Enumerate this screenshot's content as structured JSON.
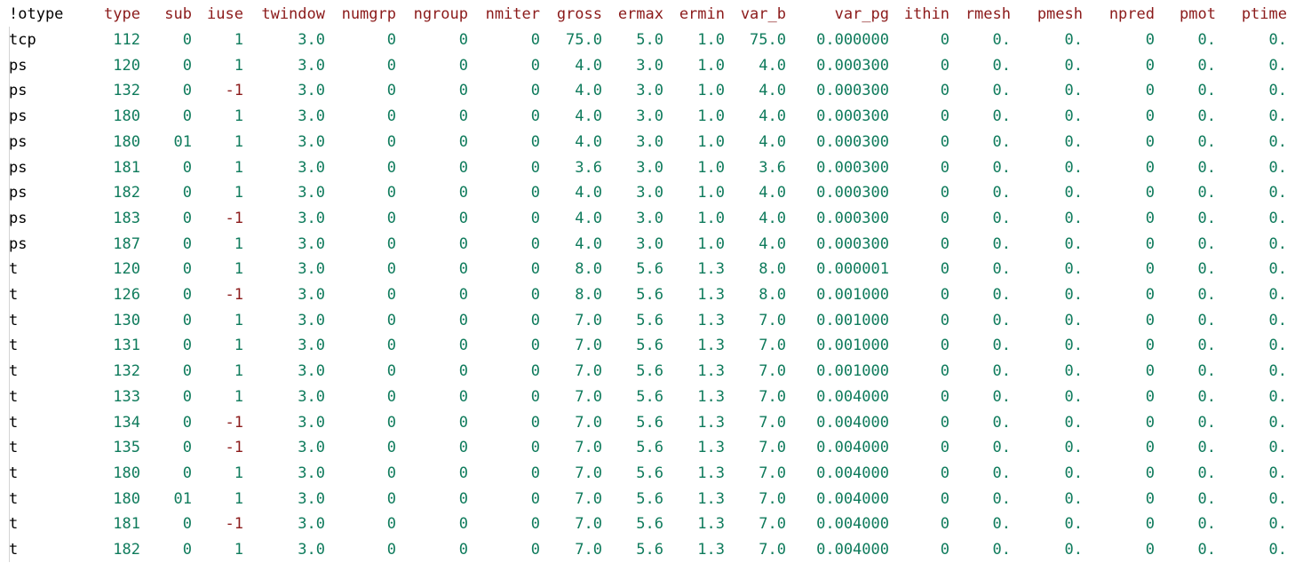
{
  "colors": {
    "header_text": "#8b1a1a",
    "first_col_text": "#000000",
    "number_text": "#0f7b5c",
    "negative_text": "#8b1a1a",
    "background": "#ffffff"
  },
  "table": {
    "headers": [
      "!otype",
      "type",
      "sub",
      "iuse",
      "twindow",
      "numgrp",
      "ngroup",
      "nmiter",
      "gross",
      "ermax",
      "ermin",
      "var_b",
      "var_pg",
      "ithin",
      "rmesh",
      "pmesh",
      "npred",
      "pmot",
      "ptime"
    ],
    "rows": [
      [
        "tcp",
        "112",
        "0",
        "1",
        "3.0",
        "0",
        "0",
        "0",
        "75.0",
        "5.0",
        "1.0",
        "75.0",
        "0.000000",
        "0",
        "0.",
        "0.",
        "0",
        "0.",
        "0."
      ],
      [
        "ps",
        "120",
        "0",
        "1",
        "3.0",
        "0",
        "0",
        "0",
        "4.0",
        "3.0",
        "1.0",
        "4.0",
        "0.000300",
        "0",
        "0.",
        "0.",
        "0",
        "0.",
        "0."
      ],
      [
        "ps",
        "132",
        "0",
        "-1",
        "3.0",
        "0",
        "0",
        "0",
        "4.0",
        "3.0",
        "1.0",
        "4.0",
        "0.000300",
        "0",
        "0.",
        "0.",
        "0",
        "0.",
        "0."
      ],
      [
        "ps",
        "180",
        "0",
        "1",
        "3.0",
        "0",
        "0",
        "0",
        "4.0",
        "3.0",
        "1.0",
        "4.0",
        "0.000300",
        "0",
        "0.",
        "0.",
        "0",
        "0.",
        "0."
      ],
      [
        "ps",
        "180",
        "01",
        "1",
        "3.0",
        "0",
        "0",
        "0",
        "4.0",
        "3.0",
        "1.0",
        "4.0",
        "0.000300",
        "0",
        "0.",
        "0.",
        "0",
        "0.",
        "0."
      ],
      [
        "ps",
        "181",
        "0",
        "1",
        "3.0",
        "0",
        "0",
        "0",
        "3.6",
        "3.0",
        "1.0",
        "3.6",
        "0.000300",
        "0",
        "0.",
        "0.",
        "0",
        "0.",
        "0."
      ],
      [
        "ps",
        "182",
        "0",
        "1",
        "3.0",
        "0",
        "0",
        "0",
        "4.0",
        "3.0",
        "1.0",
        "4.0",
        "0.000300",
        "0",
        "0.",
        "0.",
        "0",
        "0.",
        "0."
      ],
      [
        "ps",
        "183",
        "0",
        "-1",
        "3.0",
        "0",
        "0",
        "0",
        "4.0",
        "3.0",
        "1.0",
        "4.0",
        "0.000300",
        "0",
        "0.",
        "0.",
        "0",
        "0.",
        "0."
      ],
      [
        "ps",
        "187",
        "0",
        "1",
        "3.0",
        "0",
        "0",
        "0",
        "4.0",
        "3.0",
        "1.0",
        "4.0",
        "0.000300",
        "0",
        "0.",
        "0.",
        "0",
        "0.",
        "0."
      ],
      [
        "t",
        "120",
        "0",
        "1",
        "3.0",
        "0",
        "0",
        "0",
        "8.0",
        "5.6",
        "1.3",
        "8.0",
        "0.000001",
        "0",
        "0.",
        "0.",
        "0",
        "0.",
        "0."
      ],
      [
        "t",
        "126",
        "0",
        "-1",
        "3.0",
        "0",
        "0",
        "0",
        "8.0",
        "5.6",
        "1.3",
        "8.0",
        "0.001000",
        "0",
        "0.",
        "0.",
        "0",
        "0.",
        "0."
      ],
      [
        "t",
        "130",
        "0",
        "1",
        "3.0",
        "0",
        "0",
        "0",
        "7.0",
        "5.6",
        "1.3",
        "7.0",
        "0.001000",
        "0",
        "0.",
        "0.",
        "0",
        "0.",
        "0."
      ],
      [
        "t",
        "131",
        "0",
        "1",
        "3.0",
        "0",
        "0",
        "0",
        "7.0",
        "5.6",
        "1.3",
        "7.0",
        "0.001000",
        "0",
        "0.",
        "0.",
        "0",
        "0.",
        "0."
      ],
      [
        "t",
        "132",
        "0",
        "1",
        "3.0",
        "0",
        "0",
        "0",
        "7.0",
        "5.6",
        "1.3",
        "7.0",
        "0.001000",
        "0",
        "0.",
        "0.",
        "0",
        "0.",
        "0."
      ],
      [
        "t",
        "133",
        "0",
        "1",
        "3.0",
        "0",
        "0",
        "0",
        "7.0",
        "5.6",
        "1.3",
        "7.0",
        "0.004000",
        "0",
        "0.",
        "0.",
        "0",
        "0.",
        "0."
      ],
      [
        "t",
        "134",
        "0",
        "-1",
        "3.0",
        "0",
        "0",
        "0",
        "7.0",
        "5.6",
        "1.3",
        "7.0",
        "0.004000",
        "0",
        "0.",
        "0.",
        "0",
        "0.",
        "0."
      ],
      [
        "t",
        "135",
        "0",
        "-1",
        "3.0",
        "0",
        "0",
        "0",
        "7.0",
        "5.6",
        "1.3",
        "7.0",
        "0.004000",
        "0",
        "0.",
        "0.",
        "0",
        "0.",
        "0."
      ],
      [
        "t",
        "180",
        "0",
        "1",
        "3.0",
        "0",
        "0",
        "0",
        "7.0",
        "5.6",
        "1.3",
        "7.0",
        "0.004000",
        "0",
        "0.",
        "0.",
        "0",
        "0.",
        "0."
      ],
      [
        "t",
        "180",
        "01",
        "1",
        "3.0",
        "0",
        "0",
        "0",
        "7.0",
        "5.6",
        "1.3",
        "7.0",
        "0.004000",
        "0",
        "0.",
        "0.",
        "0",
        "0.",
        "0."
      ],
      [
        "t",
        "181",
        "0",
        "-1",
        "3.0",
        "0",
        "0",
        "0",
        "7.0",
        "5.6",
        "1.3",
        "7.0",
        "0.004000",
        "0",
        "0.",
        "0.",
        "0",
        "0.",
        "0."
      ],
      [
        "t",
        "182",
        "0",
        "1",
        "3.0",
        "0",
        "0",
        "0",
        "7.0",
        "5.6",
        "1.3",
        "7.0",
        "0.004000",
        "0",
        "0.",
        "0.",
        "0",
        "0.",
        "0."
      ]
    ]
  }
}
